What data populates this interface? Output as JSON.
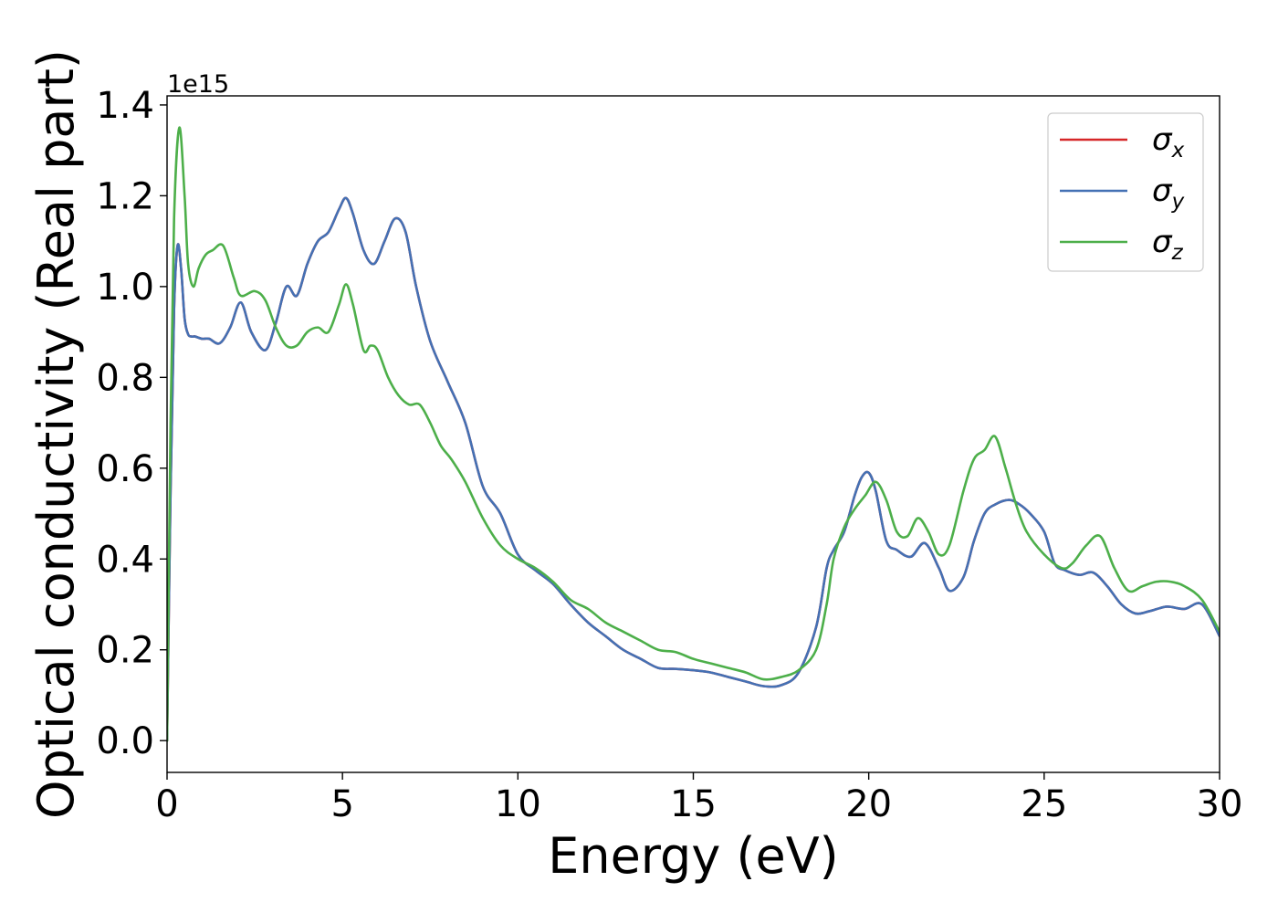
{
  "chart_data": {
    "type": "line",
    "title": "",
    "xlabel": "Energy (eV)",
    "ylabel": "Optical conductivity (Real part)",
    "y_offset_text": "1e15",
    "xlim": [
      0,
      30
    ],
    "ylim": [
      -0.07,
      1.42
    ],
    "xticks": [
      0,
      5,
      10,
      15,
      20,
      25,
      30
    ],
    "xtick_labels": [
      "0",
      "5",
      "10",
      "15",
      "20",
      "25",
      "30"
    ],
    "yticks": [
      0.0,
      0.2,
      0.4,
      0.6,
      0.8,
      1.0,
      1.2,
      1.4
    ],
    "ytick_labels": [
      "0.0",
      "0.2",
      "0.4",
      "0.6",
      "0.8",
      "1.0",
      "1.2",
      "1.4"
    ],
    "grid": false,
    "legend_position": "top-right",
    "series": [
      {
        "name": "σx",
        "sym": "σ",
        "sub": "x",
        "color": "#d62728",
        "x": [
          0.0,
          0.1,
          0.2,
          0.3,
          0.4,
          0.5,
          0.6,
          0.7,
          0.8,
          1.0,
          1.2,
          1.5,
          1.8,
          2.1,
          2.4,
          2.8,
          3.1,
          3.4,
          3.7,
          4.0,
          4.3,
          4.6,
          4.9,
          5.1,
          5.3,
          5.6,
          5.9,
          6.2,
          6.5,
          6.8,
          7.1,
          7.5,
          8.0,
          8.5,
          9.0,
          9.5,
          10.0,
          10.5,
          11.0,
          11.5,
          12.0,
          12.5,
          13.0,
          13.5,
          14.0,
          14.5,
          15.0,
          15.5,
          16.0,
          16.5,
          17.0,
          17.5,
          18.0,
          18.5,
          18.8,
          19.0,
          19.3,
          19.6,
          19.8,
          20.0,
          20.2,
          20.5,
          20.8,
          21.2,
          21.6,
          22.0,
          22.3,
          22.7,
          23.0,
          23.3,
          23.6,
          24.0,
          24.3,
          24.6,
          25.0,
          25.3,
          25.6,
          26.0,
          26.4,
          26.8,
          27.2,
          27.6,
          28.0,
          28.5,
          29.0,
          29.5,
          30.0
        ],
        "y": [
          0.0,
          0.55,
          0.95,
          1.09,
          1.04,
          0.93,
          0.895,
          0.89,
          0.89,
          0.885,
          0.885,
          0.875,
          0.91,
          0.965,
          0.9,
          0.86,
          0.92,
          1.0,
          0.98,
          1.05,
          1.1,
          1.12,
          1.17,
          1.195,
          1.16,
          1.08,
          1.05,
          1.1,
          1.15,
          1.12,
          1.0,
          0.88,
          0.79,
          0.7,
          0.56,
          0.5,
          0.41,
          0.375,
          0.345,
          0.3,
          0.26,
          0.23,
          0.2,
          0.18,
          0.16,
          0.158,
          0.155,
          0.15,
          0.14,
          0.13,
          0.12,
          0.122,
          0.15,
          0.25,
          0.38,
          0.42,
          0.46,
          0.54,
          0.58,
          0.59,
          0.55,
          0.44,
          0.42,
          0.405,
          0.435,
          0.38,
          0.33,
          0.36,
          0.44,
          0.5,
          0.52,
          0.53,
          0.52,
          0.5,
          0.46,
          0.39,
          0.375,
          0.365,
          0.37,
          0.34,
          0.3,
          0.28,
          0.285,
          0.295,
          0.29,
          0.3,
          0.23
        ]
      },
      {
        "name": "σy",
        "sym": "σ",
        "sub": "y",
        "color": "#4471b4",
        "x": [
          0.0,
          0.1,
          0.2,
          0.3,
          0.4,
          0.5,
          0.6,
          0.7,
          0.8,
          1.0,
          1.2,
          1.5,
          1.8,
          2.1,
          2.4,
          2.8,
          3.1,
          3.4,
          3.7,
          4.0,
          4.3,
          4.6,
          4.9,
          5.1,
          5.3,
          5.6,
          5.9,
          6.2,
          6.5,
          6.8,
          7.1,
          7.5,
          8.0,
          8.5,
          9.0,
          9.5,
          10.0,
          10.5,
          11.0,
          11.5,
          12.0,
          12.5,
          13.0,
          13.5,
          14.0,
          14.5,
          15.0,
          15.5,
          16.0,
          16.5,
          17.0,
          17.5,
          18.0,
          18.5,
          18.8,
          19.0,
          19.3,
          19.6,
          19.8,
          20.0,
          20.2,
          20.5,
          20.8,
          21.2,
          21.6,
          22.0,
          22.3,
          22.7,
          23.0,
          23.3,
          23.6,
          24.0,
          24.3,
          24.6,
          25.0,
          25.3,
          25.6,
          26.0,
          26.4,
          26.8,
          27.2,
          27.6,
          28.0,
          28.5,
          29.0,
          29.5,
          30.0
        ],
        "y": [
          0.0,
          0.55,
          0.95,
          1.09,
          1.04,
          0.93,
          0.895,
          0.89,
          0.89,
          0.885,
          0.885,
          0.875,
          0.91,
          0.965,
          0.9,
          0.86,
          0.92,
          1.0,
          0.98,
          1.05,
          1.1,
          1.12,
          1.17,
          1.195,
          1.16,
          1.08,
          1.05,
          1.1,
          1.15,
          1.12,
          1.0,
          0.88,
          0.79,
          0.7,
          0.56,
          0.5,
          0.41,
          0.375,
          0.345,
          0.3,
          0.26,
          0.23,
          0.2,
          0.18,
          0.16,
          0.158,
          0.155,
          0.15,
          0.14,
          0.13,
          0.12,
          0.122,
          0.15,
          0.25,
          0.38,
          0.42,
          0.46,
          0.54,
          0.58,
          0.59,
          0.55,
          0.44,
          0.42,
          0.405,
          0.435,
          0.38,
          0.33,
          0.36,
          0.44,
          0.5,
          0.52,
          0.53,
          0.52,
          0.5,
          0.46,
          0.39,
          0.375,
          0.365,
          0.37,
          0.34,
          0.3,
          0.28,
          0.285,
          0.295,
          0.29,
          0.3,
          0.23
        ]
      },
      {
        "name": "σz",
        "sym": "σ",
        "sub": "z",
        "color": "#4daf4a",
        "x": [
          0.0,
          0.1,
          0.2,
          0.35,
          0.5,
          0.6,
          0.75,
          0.9,
          1.1,
          1.3,
          1.6,
          1.9,
          2.1,
          2.5,
          2.8,
          3.1,
          3.4,
          3.7,
          4.0,
          4.3,
          4.6,
          4.9,
          5.1,
          5.3,
          5.6,
          5.8,
          6.0,
          6.3,
          6.6,
          6.9,
          7.2,
          7.5,
          7.8,
          8.1,
          8.5,
          9.0,
          9.5,
          10.0,
          10.5,
          11.0,
          11.5,
          12.0,
          12.5,
          13.0,
          13.5,
          14.0,
          14.5,
          15.0,
          15.5,
          16.0,
          16.5,
          17.0,
          17.5,
          18.0,
          18.5,
          18.8,
          19.0,
          19.3,
          19.6,
          19.9,
          20.2,
          20.5,
          20.8,
          21.1,
          21.4,
          21.7,
          22.0,
          22.3,
          22.7,
          23.0,
          23.3,
          23.6,
          23.9,
          24.2,
          24.5,
          25.0,
          25.5,
          25.8,
          26.2,
          26.6,
          27.0,
          27.4,
          27.8,
          28.2,
          28.6,
          29.0,
          29.5,
          30.0
        ],
        "y": [
          0.0,
          0.7,
          1.15,
          1.35,
          1.2,
          1.05,
          1.0,
          1.04,
          1.07,
          1.08,
          1.09,
          1.02,
          0.98,
          0.99,
          0.97,
          0.91,
          0.87,
          0.87,
          0.9,
          0.91,
          0.9,
          0.96,
          1.005,
          0.96,
          0.86,
          0.87,
          0.86,
          0.8,
          0.76,
          0.74,
          0.74,
          0.7,
          0.65,
          0.62,
          0.57,
          0.49,
          0.43,
          0.4,
          0.38,
          0.35,
          0.31,
          0.29,
          0.26,
          0.24,
          0.22,
          0.2,
          0.195,
          0.18,
          0.17,
          0.16,
          0.15,
          0.135,
          0.14,
          0.155,
          0.2,
          0.3,
          0.4,
          0.47,
          0.51,
          0.54,
          0.57,
          0.53,
          0.46,
          0.45,
          0.49,
          0.46,
          0.41,
          0.43,
          0.55,
          0.62,
          0.64,
          0.67,
          0.6,
          0.52,
          0.46,
          0.41,
          0.38,
          0.39,
          0.43,
          0.45,
          0.38,
          0.33,
          0.34,
          0.35,
          0.35,
          0.34,
          0.31,
          0.24
        ]
      }
    ]
  }
}
